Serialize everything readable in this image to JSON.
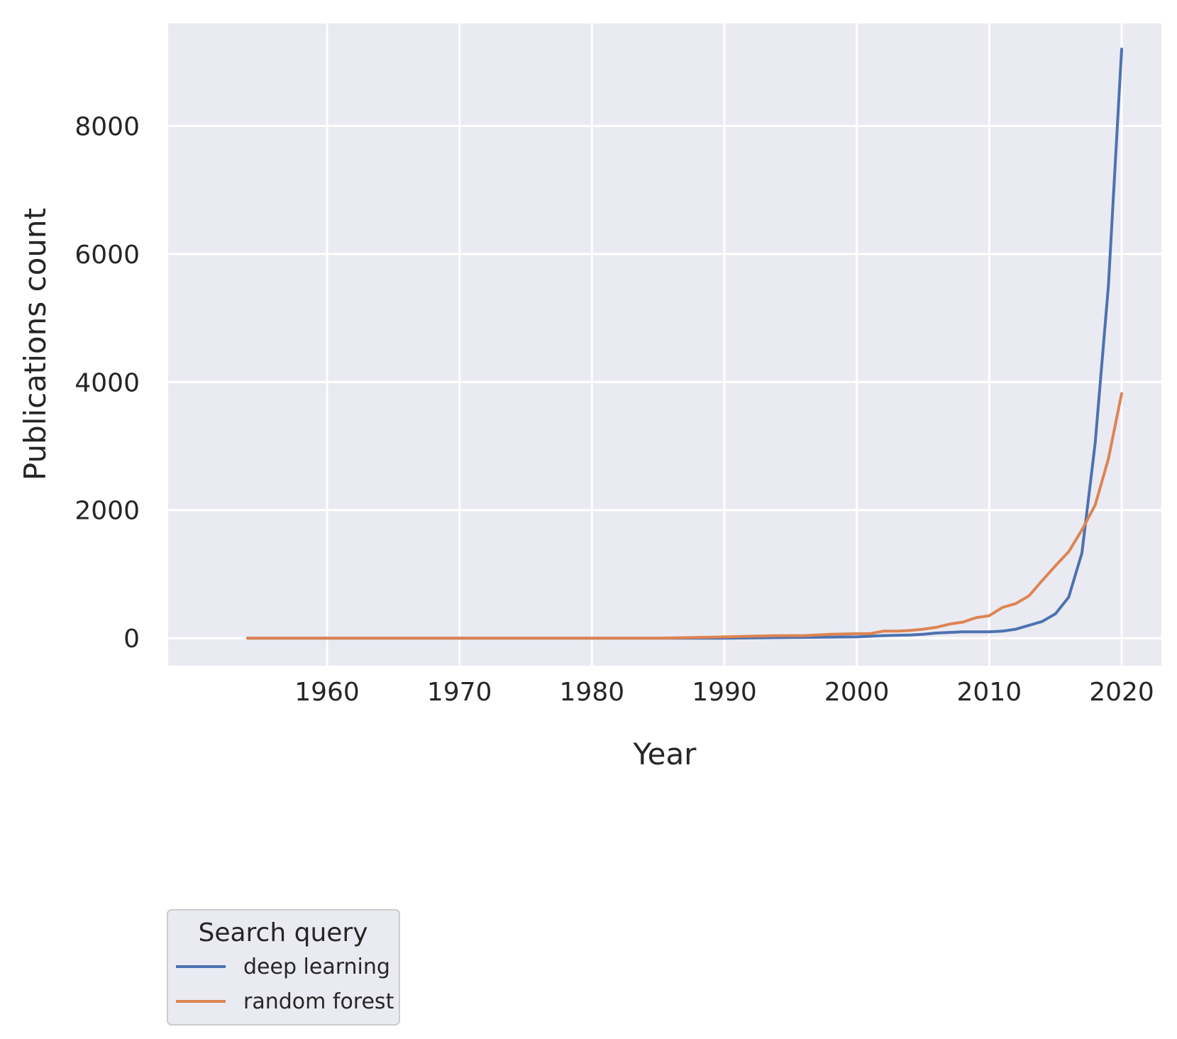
{
  "chart_data": {
    "type": "line",
    "xlabel": "Year",
    "ylabel": "Publications count",
    "xlim": [
      1948,
      2023
    ],
    "ylim": [
      -430,
      9600
    ],
    "x_ticks": [
      1960,
      1970,
      1980,
      1990,
      2000,
      2010,
      2020
    ],
    "y_ticks": [
      0,
      2000,
      4000,
      6000,
      8000
    ],
    "grid": true,
    "background": "#eaeaf2",
    "legend": {
      "title": "Search query",
      "placement": "below-left",
      "entries": [
        "deep learning",
        "random forest"
      ]
    },
    "series": [
      {
        "name": "deep learning",
        "color": "#4c72b0",
        "x": [
          1954,
          1960,
          1970,
          1980,
          1985,
          1990,
          1995,
          2000,
          2002,
          2004,
          2005,
          2006,
          2007,
          2008,
          2009,
          2010,
          2011,
          2012,
          2013,
          2014,
          2015,
          2016,
          2017,
          2018,
          2019,
          2020
        ],
        "y": [
          0,
          0,
          0,
          0,
          0,
          0,
          10,
          20,
          40,
          50,
          60,
          80,
          90,
          100,
          100,
          100,
          110,
          140,
          200,
          260,
          380,
          640,
          1330,
          3050,
          5500,
          9200
        ]
      },
      {
        "name": "random forest",
        "color": "#dd8452",
        "x": [
          1954,
          1960,
          1970,
          1980,
          1985,
          1990,
          1994,
          1996,
          1998,
          2000,
          2001,
          2002,
          2003,
          2004,
          2005,
          2006,
          2007,
          2008,
          2009,
          2010,
          2011,
          2012,
          2013,
          2014,
          2015,
          2016,
          2017,
          2018,
          2019,
          2020
        ],
        "y": [
          0,
          0,
          0,
          0,
          0,
          20,
          40,
          40,
          60,
          70,
          70,
          110,
          110,
          120,
          140,
          170,
          220,
          250,
          320,
          350,
          480,
          540,
          660,
          900,
          1130,
          1350,
          1690,
          2080,
          2800,
          3820
        ]
      }
    ]
  }
}
